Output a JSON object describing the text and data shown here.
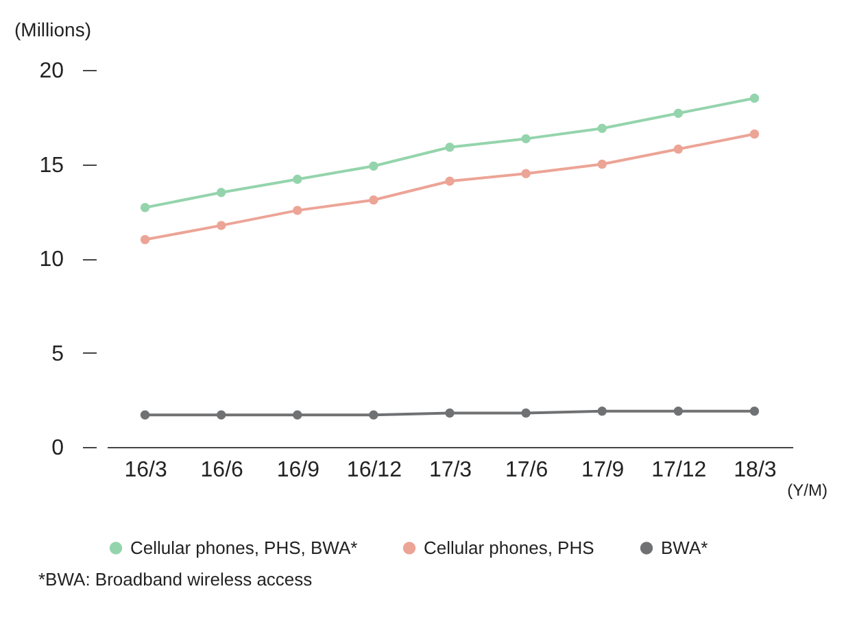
{
  "chart_data": {
    "type": "line",
    "xlabel": "(Y/M)",
    "ylabel": "(Millions)",
    "categories": [
      "16/3",
      "16/6",
      "16/9",
      "16/12",
      "17/3",
      "17/6",
      "17/9",
      "17/12",
      "18/3"
    ],
    "series": [
      {
        "name": "Cellular phones, PHS, BWA*",
        "color": "#94d4ac",
        "values": [
          12.7,
          13.5,
          14.2,
          14.9,
          15.9,
          16.35,
          16.9,
          17.7,
          18.5
        ]
      },
      {
        "name": "Cellular phones, PHS",
        "color": "#eca496",
        "values": [
          11.0,
          11.75,
          12.55,
          13.1,
          14.1,
          14.5,
          15.0,
          15.8,
          16.6
        ]
      },
      {
        "name": "BWA*",
        "color": "#707173",
        "values": [
          1.7,
          1.7,
          1.7,
          1.7,
          1.8,
          1.8,
          1.9,
          1.9,
          1.9
        ]
      }
    ],
    "ylim": [
      0,
      20
    ],
    "yticks": [
      0,
      5,
      10,
      15,
      20
    ],
    "grid": false,
    "legend": "bottom",
    "marker": "circle",
    "line_style": "solid",
    "annotations": [
      "*BWA: Broadband wireless access"
    ]
  }
}
